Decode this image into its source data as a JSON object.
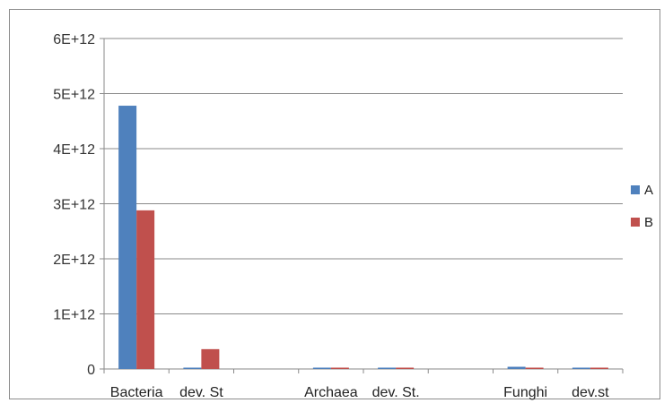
{
  "chart_data": {
    "type": "bar",
    "categories": [
      "Bacteria",
      "dev. St",
      "",
      "Archaea",
      "dev. St.",
      "",
      "Funghi",
      "dev.st"
    ],
    "series": [
      {
        "name": "A",
        "color": "#4f81bd",
        "values": [
          4780000000000.0,
          10000000000.0,
          0,
          10000000000.0,
          10000000000.0,
          0,
          40000000000.0,
          10000000000.0
        ]
      },
      {
        "name": "B",
        "color": "#c0504d",
        "values": [
          2880000000000.0,
          360000000000.0,
          0,
          10000000000.0,
          10000000000.0,
          0,
          15000000000.0,
          10000000000.0
        ]
      }
    ],
    "y_ticks": [
      "0",
      "1E+12",
      "2E+12",
      "3E+12",
      "4E+12",
      "5E+12",
      "6E+12"
    ],
    "ylim": [
      0,
      6000000000000.0
    ],
    "grid": true,
    "legend_position": "right"
  }
}
